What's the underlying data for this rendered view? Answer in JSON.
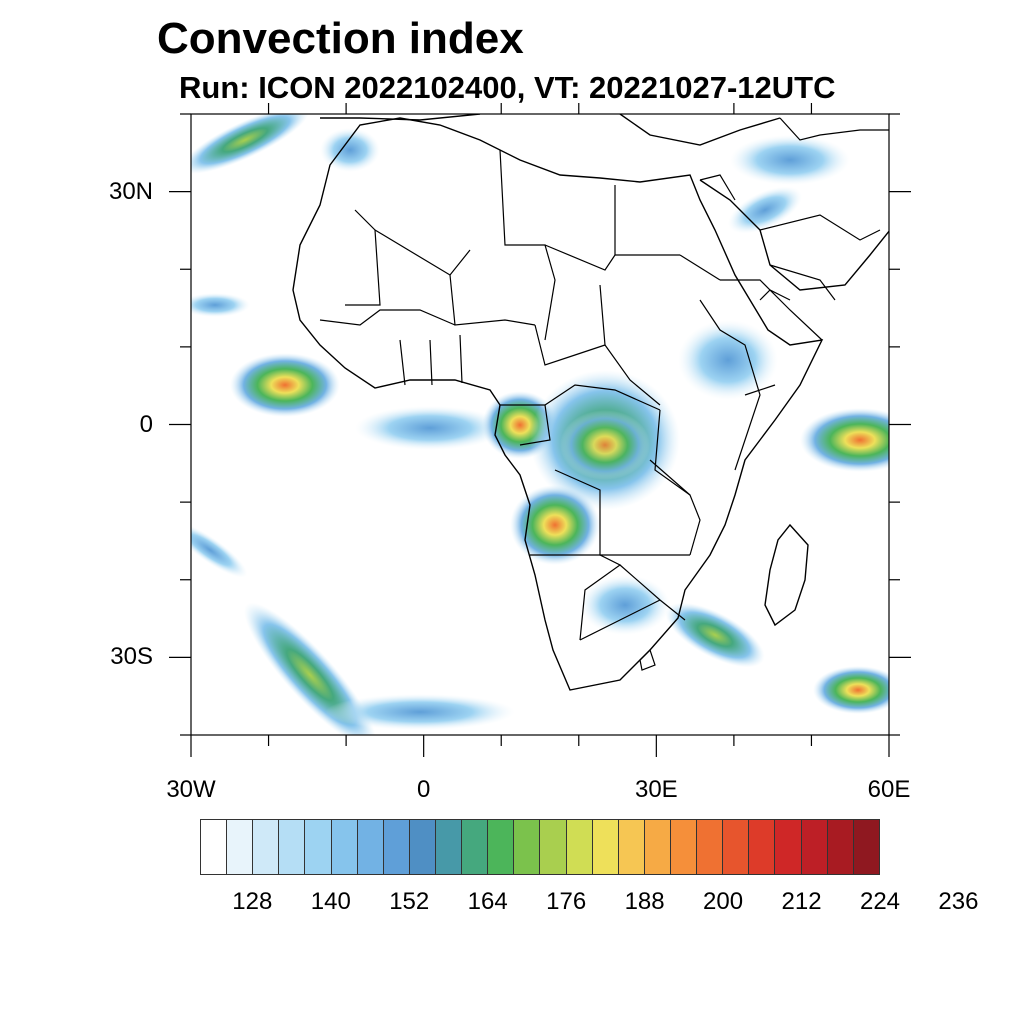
{
  "title": "Convection index",
  "subtitle": "Run: ICON 2022102400,  VT: 20221027-12UTC",
  "map": {
    "lon_range": [
      -30,
      60
    ],
    "lat_range": [
      -40,
      40
    ],
    "lon_ticks": [
      {
        "value": -30,
        "label": "30W"
      },
      {
        "value": 0,
        "label": "0"
      },
      {
        "value": 30,
        "label": "30E"
      },
      {
        "value": 60,
        "label": "60E"
      }
    ],
    "lat_ticks": [
      {
        "value": 30,
        "label": "30N"
      },
      {
        "value": 0,
        "label": "0"
      },
      {
        "value": -30,
        "label": "30S"
      }
    ]
  },
  "colorbar": {
    "colors": [
      "#ffffff",
      "#e8f4fb",
      "#cfe9f8",
      "#b5def5",
      "#9dd3f2",
      "#86c4ec",
      "#72b2e4",
      "#5f9fd8",
      "#4f8fc4",
      "#4799a8",
      "#45a87e",
      "#4cb55a",
      "#7bc24c",
      "#a9cf4f",
      "#d0dd54",
      "#eee05a",
      "#f6c653",
      "#f6aa45",
      "#f58f3a",
      "#ef7132",
      "#e7552d",
      "#dd3b29",
      "#cf2727",
      "#bd1f26",
      "#a81b22",
      "#8f1820"
    ],
    "tick_labels": [
      "128",
      "140",
      "152",
      "164",
      "176",
      "188",
      "200",
      "212",
      "224",
      "236"
    ],
    "tick_swatch_positions": [
      2,
      5,
      8,
      11,
      14,
      17,
      20,
      23,
      26,
      29
    ]
  }
}
